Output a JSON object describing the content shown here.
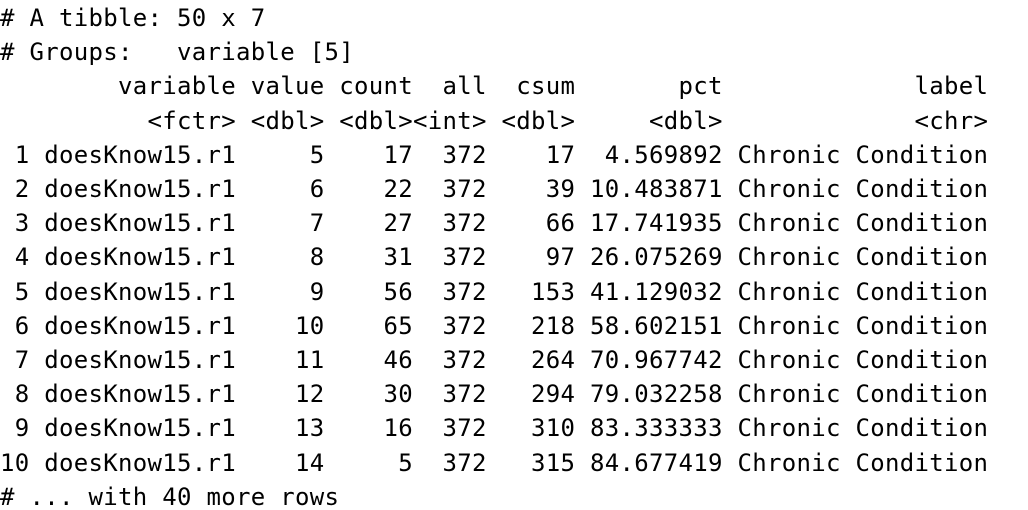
{
  "header": {
    "title": "# A tibble: 50 x 7",
    "groups": "# Groups:   variable [5]"
  },
  "table": {
    "columns": [
      "variable",
      "value",
      "count",
      "all",
      "csum",
      "pct",
      "label"
    ],
    "types": [
      "<fctr>",
      "<dbl>",
      "<dbl>",
      "<int>",
      "<dbl>",
      "<dbl>",
      "<chr>"
    ],
    "rows": [
      [
        "1",
        "doesKnow15.r1",
        "5",
        "17",
        "372",
        "17",
        "4.569892",
        "Chronic Condition"
      ],
      [
        "2",
        "doesKnow15.r1",
        "6",
        "22",
        "372",
        "39",
        "10.483871",
        "Chronic Condition"
      ],
      [
        "3",
        "doesKnow15.r1",
        "7",
        "27",
        "372",
        "66",
        "17.741935",
        "Chronic Condition"
      ],
      [
        "4",
        "doesKnow15.r1",
        "8",
        "31",
        "372",
        "97",
        "26.075269",
        "Chronic Condition"
      ],
      [
        "5",
        "doesKnow15.r1",
        "9",
        "56",
        "372",
        "153",
        "41.129032",
        "Chronic Condition"
      ],
      [
        "6",
        "doesKnow15.r1",
        "10",
        "65",
        "372",
        "218",
        "58.602151",
        "Chronic Condition"
      ],
      [
        "7",
        "doesKnow15.r1",
        "11",
        "46",
        "372",
        "264",
        "70.967742",
        "Chronic Condition"
      ],
      [
        "8",
        "doesKnow15.r1",
        "12",
        "30",
        "372",
        "294",
        "79.032258",
        "Chronic Condition"
      ],
      [
        "9",
        "doesKnow15.r1",
        "13",
        "16",
        "372",
        "310",
        "83.333333",
        "Chronic Condition"
      ],
      [
        "10",
        "doesKnow15.r1",
        "14",
        "5",
        "372",
        "315",
        "84.677419",
        "Chronic Condition"
      ]
    ]
  },
  "footer": "# ... with 40 more rows"
}
